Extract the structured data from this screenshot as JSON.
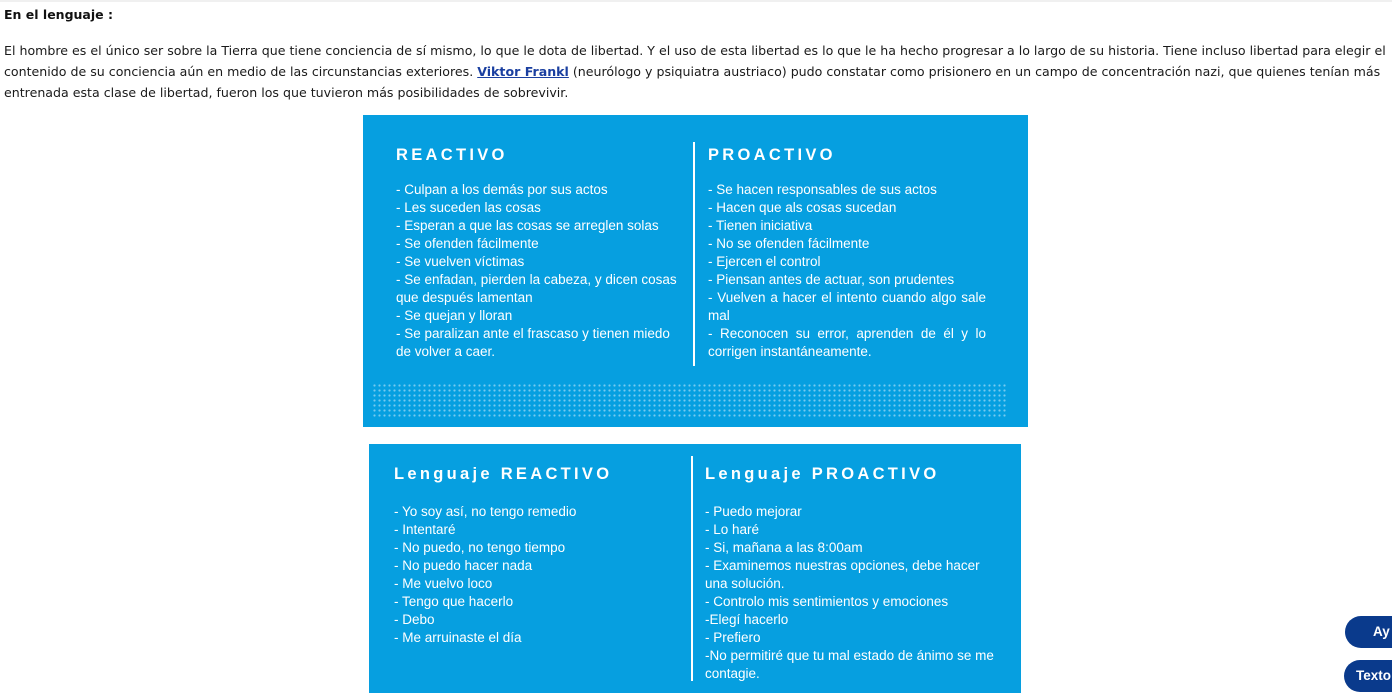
{
  "heading": "En el lenguaje :",
  "paragraph": {
    "part1": "El hombre es el único ser sobre la Tierra que tiene conciencia de sí mismo, lo que le dota de libertad. Y el uso de esta libertad es lo que le ha hecho progresar a lo largo de su historia. Tiene incluso libertad para elegir el contenido de su conciencia aún en medio de las circunstancias exteriores. ",
    "link": "Viktor Frankl",
    "part2": " (neurólogo y psiquiatra austriaco) pudo constatar como prisionero en un campo de concentración nazi, que quienes tenían más entrenada esta clase de libertad, fueron los que tuvieron más posibilidades de sobrevivir."
  },
  "card1": {
    "left": {
      "title": "REACTIVO",
      "items": [
        "- Culpan a los demás por sus actos",
        "- Les suceden las cosas",
        "- Esperan a que las cosas se arreglen solas",
        "- Se ofenden fácilmente",
        "- Se vuelven víctimas",
        "- Se enfadan, pierden la cabeza, y dicen cosas que después lamentan",
        "- Se quejan y lloran",
        "- Se paralizan ante el frascaso y tienen miedo de volver a caer."
      ]
    },
    "right": {
      "title": "PROACTIVO",
      "items": [
        "- Se hacen responsables de sus actos",
        "- Hacen que als cosas sucedan",
        "- Tienen iniciativa",
        "- No se ofenden fácilmente",
        "- Ejercen el control",
        "- Piensan antes de actuar, son prudentes",
        "- Vuelven a hacer el intento cuando algo sale mal",
        "- Reconocen su error, aprenden de él y lo corrigen instantáneamente."
      ]
    }
  },
  "card2": {
    "left": {
      "title": "Lenguaje REACTIVO",
      "items": [
        "- Yo soy así, no tengo remedio",
        "- Intentaré",
        "- No puedo, no tengo tiempo",
        "- No puedo hacer nada",
        "- Me vuelvo loco",
        "- Tengo que hacerlo",
        "- Debo",
        "- Me arruinaste el día"
      ]
    },
    "right": {
      "title": "Lenguaje PROACTIVO",
      "items": [
        "- Puedo mejorar",
        "- Lo haré",
        "- Si, mañana a las 8:00am",
        "- Examinemos nuestras opciones, debe hacer una solución.",
        "- Controlo mis sentimientos y emociones",
        "-Elegí hacerlo",
        "- Prefiero",
        "-No permitiré que tu mal estado de ánimo  se me contagie."
      ]
    }
  },
  "buttons": {
    "help": "Ay",
    "text": "Texto"
  },
  "colors": {
    "card_blue": "#069fe0",
    "pill_navy": "#0a3a8c",
    "link": "#1a3fa0"
  }
}
